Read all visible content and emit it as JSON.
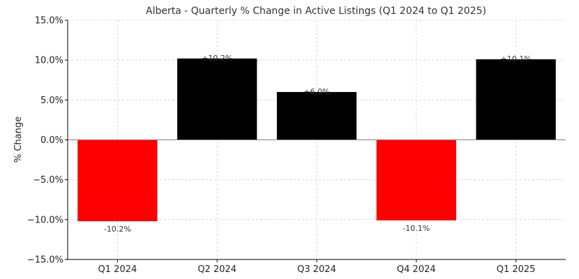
{
  "chart_data": {
    "type": "bar",
    "title": "Alberta - Quarterly % Change in Active Listings (Q1 2024 to Q1 2025)",
    "xlabel": "",
    "ylabel": "% Change",
    "categories": [
      "Q1 2024",
      "Q2 2024",
      "Q3 2024",
      "Q4 2024",
      "Q1 2025"
    ],
    "values": [
      -10.2,
      10.2,
      6.0,
      -10.1,
      10.1
    ],
    "data_labels": [
      "-10.2%",
      "+10.2%",
      "+6.0%",
      "-10.1%",
      "+10.1%"
    ],
    "bar_colors": [
      "#ff0000",
      "#000000",
      "#000000",
      "#ff0000",
      "#000000"
    ],
    "ylim": [
      -15,
      15
    ],
    "y_ticks": [
      15,
      10,
      5,
      0,
      -5,
      -10,
      -15
    ],
    "y_tick_labels": [
      "15.0%",
      "10.0%",
      "5.0%",
      "0.0%",
      "−5.0%",
      "−10.0%",
      "−15.0%"
    ],
    "grid": true,
    "legend": "none",
    "colors": {
      "positive": "#000000",
      "negative": "#ff0000",
      "zero_line": "#808080",
      "grid": "#cfcfcf"
    }
  }
}
